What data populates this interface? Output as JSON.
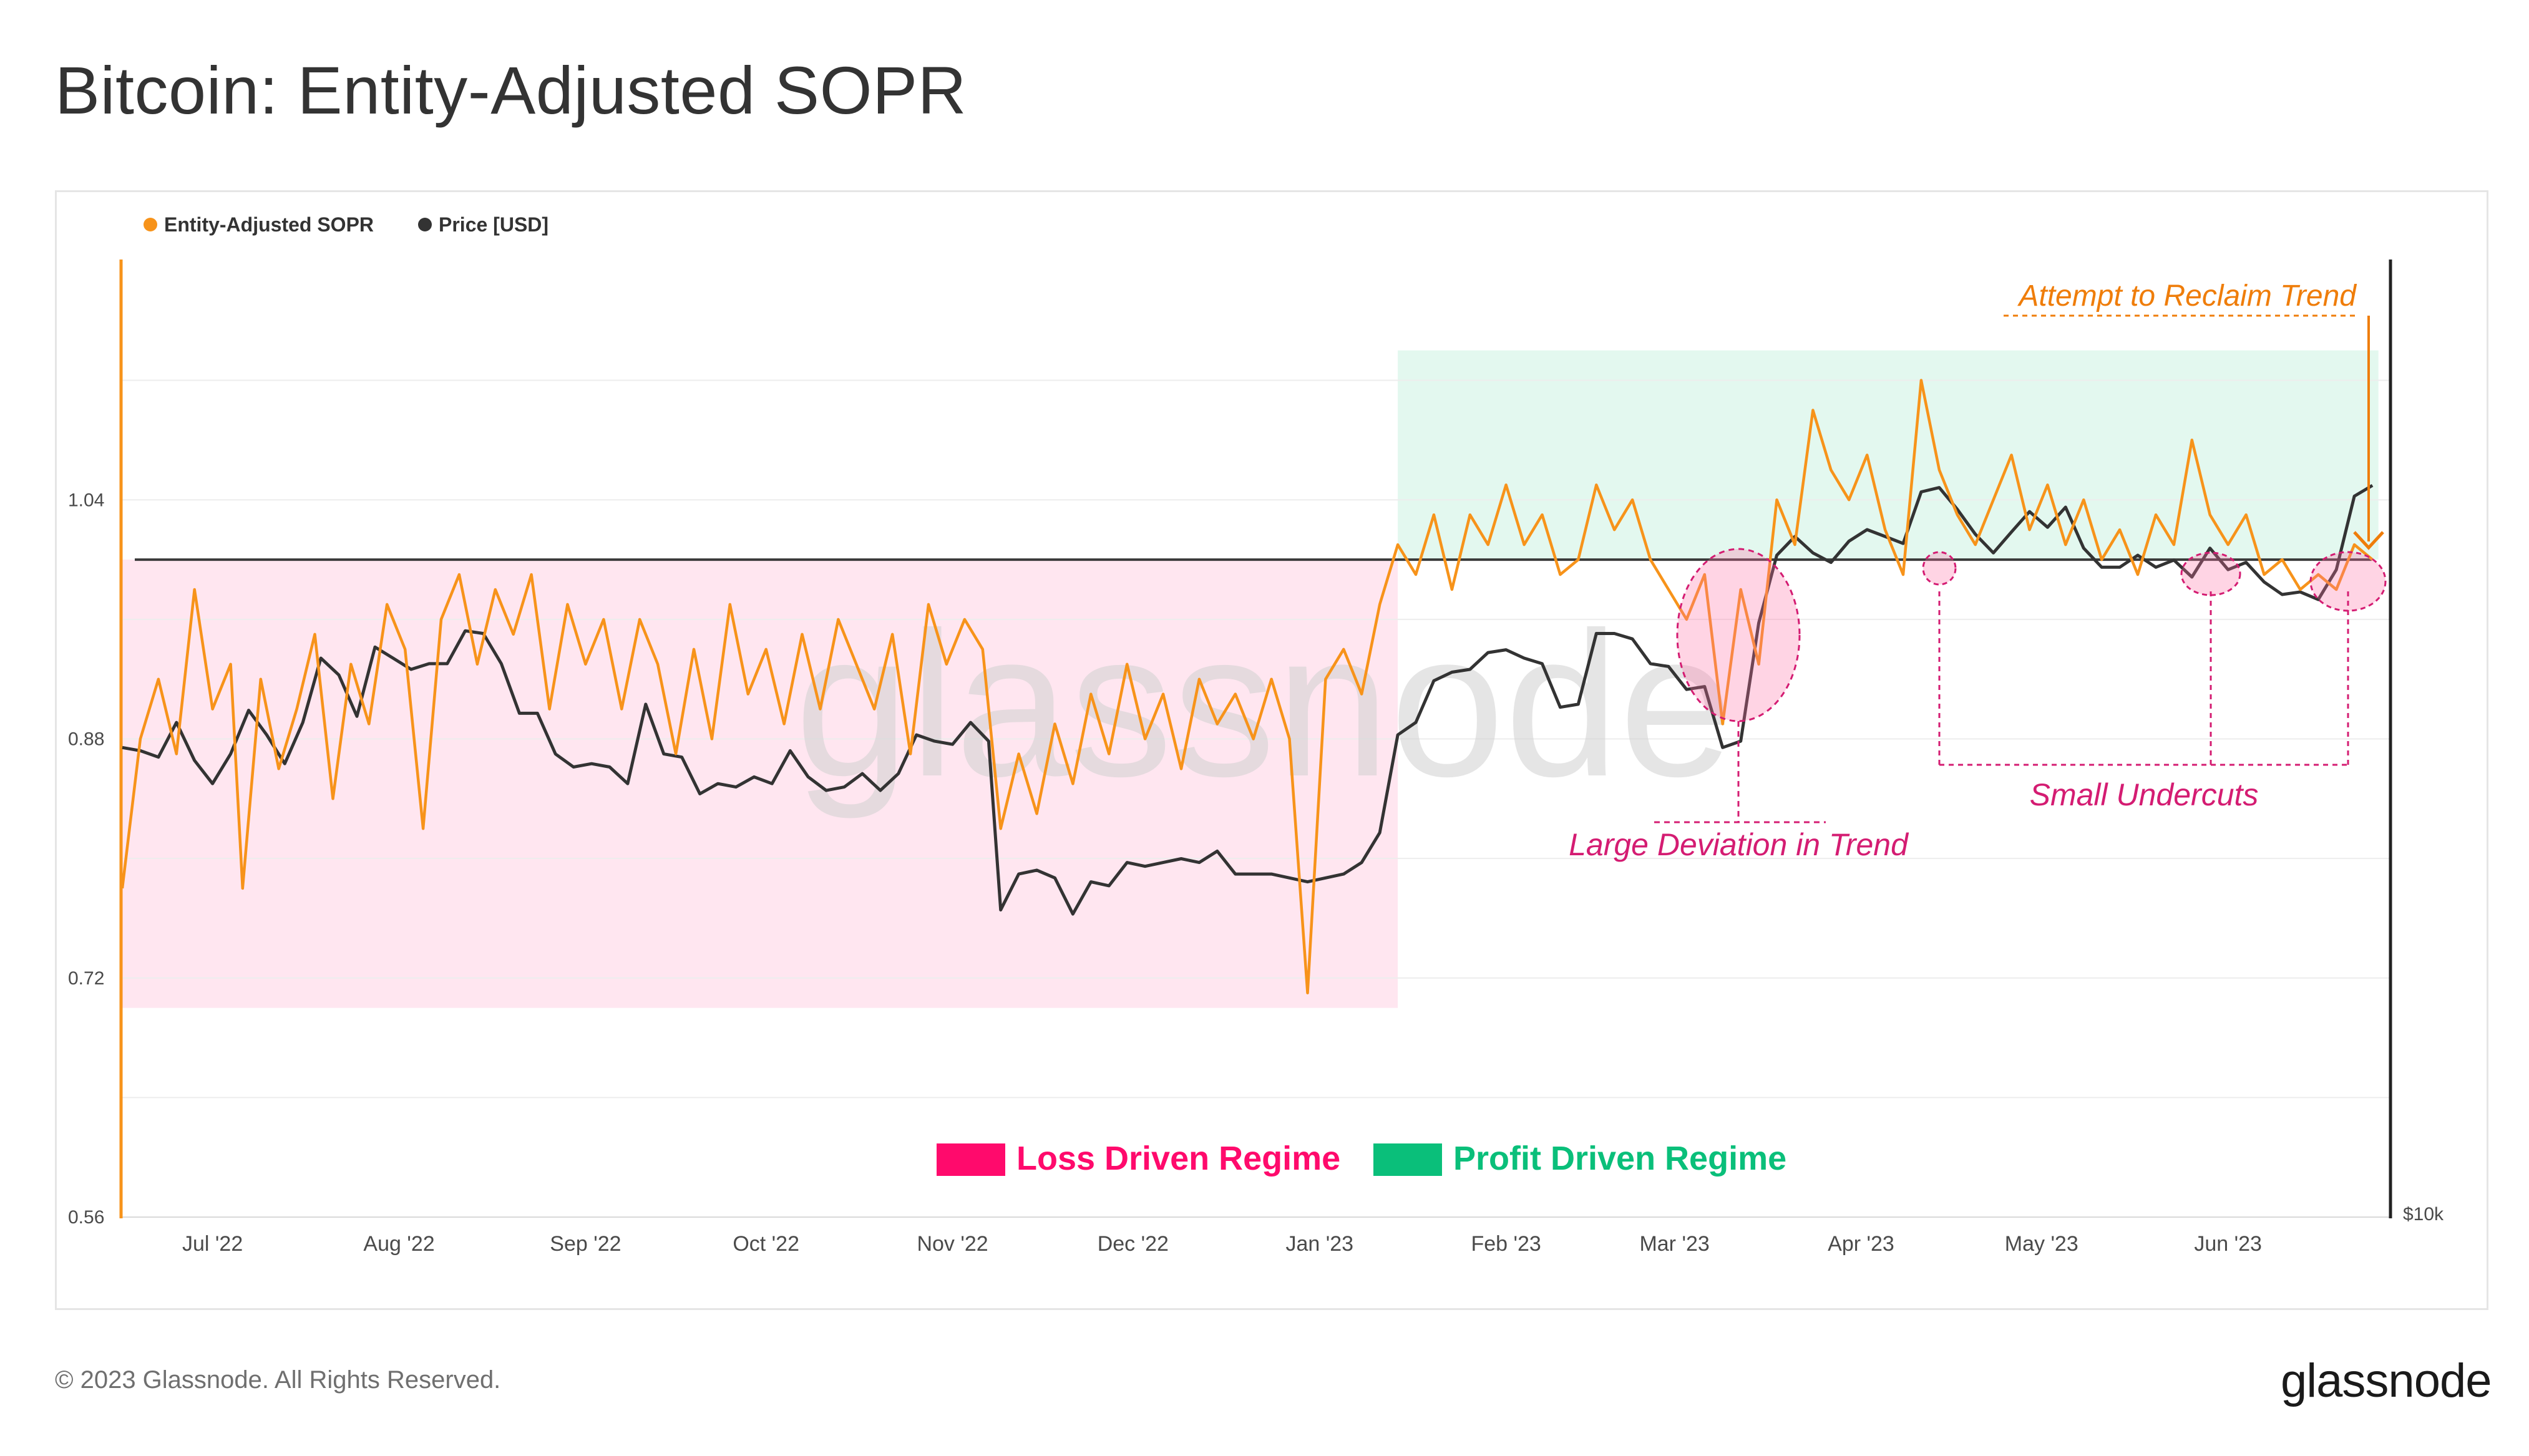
{
  "page": {
    "title": "Bitcoin: Entity-Adjusted SOPR",
    "footer": "© 2023 Glassnode. All Rights Reserved.",
    "brand": "glassnode",
    "watermark": "glassnode"
  },
  "chart_data": {
    "type": "line",
    "title": "Bitcoin: Entity-Adjusted SOPR",
    "legend": [
      {
        "name": "Entity-Adjusted SOPR",
        "color": "#f7931a"
      },
      {
        "name": "Price [USD]",
        "color": "#333333"
      }
    ],
    "legend_placement": "top-left",
    "grid": true,
    "x_ticks": [
      "Jul '22",
      "Aug '22",
      "Sep '22",
      "Oct '22",
      "Nov '22",
      "Dec '22",
      "Jan '23",
      "Feb '23",
      "Mar '23",
      "Apr '23",
      "May '23",
      "Jun '23"
    ],
    "x_range": [
      "2022-06-16",
      "2023-06-28"
    ],
    "y_left": {
      "ticks": [
        "0.56",
        "0.72",
        "0.88",
        "1.04"
      ],
      "range": [
        0.56,
        1.2
      ]
    },
    "y_right": {
      "ticks": [
        "$10k"
      ],
      "scale": "log"
    },
    "reference_line": 1.0,
    "series": [
      {
        "name": "Entity-Adjusted SOPR",
        "axis": "left",
        "color": "#f7931a",
        "points": [
          [
            "2022-06-16",
            0.78
          ],
          [
            "2022-06-19",
            0.88
          ],
          [
            "2022-06-22",
            0.92
          ],
          [
            "2022-06-25",
            0.87
          ],
          [
            "2022-06-28",
            0.98
          ],
          [
            "2022-07-01",
            0.9
          ],
          [
            "2022-07-04",
            0.93
          ],
          [
            "2022-07-06",
            0.78
          ],
          [
            "2022-07-09",
            0.92
          ],
          [
            "2022-07-12",
            0.86
          ],
          [
            "2022-07-15",
            0.9
          ],
          [
            "2022-07-18",
            0.95
          ],
          [
            "2022-07-21",
            0.84
          ],
          [
            "2022-07-24",
            0.93
          ],
          [
            "2022-07-27",
            0.89
          ],
          [
            "2022-07-30",
            0.97
          ],
          [
            "2022-08-02",
            0.94
          ],
          [
            "2022-08-05",
            0.82
          ],
          [
            "2022-08-08",
            0.96
          ],
          [
            "2022-08-11",
            0.99
          ],
          [
            "2022-08-14",
            0.93
          ],
          [
            "2022-08-17",
            0.98
          ],
          [
            "2022-08-20",
            0.95
          ],
          [
            "2022-08-23",
            0.99
          ],
          [
            "2022-08-26",
            0.9
          ],
          [
            "2022-08-29",
            0.97
          ],
          [
            "2022-09-01",
            0.93
          ],
          [
            "2022-09-04",
            0.96
          ],
          [
            "2022-09-07",
            0.9
          ],
          [
            "2022-09-10",
            0.96
          ],
          [
            "2022-09-13",
            0.93
          ],
          [
            "2022-09-16",
            0.87
          ],
          [
            "2022-09-19",
            0.94
          ],
          [
            "2022-09-22",
            0.88
          ],
          [
            "2022-09-25",
            0.97
          ],
          [
            "2022-09-28",
            0.91
          ],
          [
            "2022-10-01",
            0.94
          ],
          [
            "2022-10-04",
            0.89
          ],
          [
            "2022-10-07",
            0.95
          ],
          [
            "2022-10-10",
            0.9
          ],
          [
            "2022-10-13",
            0.96
          ],
          [
            "2022-10-16",
            0.93
          ],
          [
            "2022-10-19",
            0.9
          ],
          [
            "2022-10-22",
            0.95
          ],
          [
            "2022-10-25",
            0.87
          ],
          [
            "2022-10-28",
            0.97
          ],
          [
            "2022-10-31",
            0.93
          ],
          [
            "2022-11-03",
            0.96
          ],
          [
            "2022-11-06",
            0.94
          ],
          [
            "2022-11-09",
            0.82
          ],
          [
            "2022-11-12",
            0.87
          ],
          [
            "2022-11-15",
            0.83
          ],
          [
            "2022-11-18",
            0.89
          ],
          [
            "2022-11-21",
            0.85
          ],
          [
            "2022-11-24",
            0.91
          ],
          [
            "2022-11-27",
            0.87
          ],
          [
            "2022-11-30",
            0.93
          ],
          [
            "2022-12-03",
            0.88
          ],
          [
            "2022-12-06",
            0.91
          ],
          [
            "2022-12-09",
            0.86
          ],
          [
            "2022-12-12",
            0.92
          ],
          [
            "2022-12-15",
            0.89
          ],
          [
            "2022-12-18",
            0.91
          ],
          [
            "2022-12-21",
            0.88
          ],
          [
            "2022-12-24",
            0.92
          ],
          [
            "2022-12-27",
            0.88
          ],
          [
            "2022-12-30",
            0.71
          ],
          [
            "2023-01-02",
            0.92
          ],
          [
            "2023-01-05",
            0.94
          ],
          [
            "2023-01-08",
            0.91
          ],
          [
            "2023-01-11",
            0.97
          ],
          [
            "2023-01-14",
            1.01
          ],
          [
            "2023-01-17",
            0.99
          ],
          [
            "2023-01-20",
            1.03
          ],
          [
            "2023-01-23",
            0.98
          ],
          [
            "2023-01-26",
            1.03
          ],
          [
            "2023-01-29",
            1.01
          ],
          [
            "2023-02-01",
            1.05
          ],
          [
            "2023-02-04",
            1.01
          ],
          [
            "2023-02-07",
            1.03
          ],
          [
            "2023-02-10",
            0.99
          ],
          [
            "2023-02-13",
            1.0
          ],
          [
            "2023-02-16",
            1.05
          ],
          [
            "2023-02-19",
            1.02
          ],
          [
            "2023-02-22",
            1.04
          ],
          [
            "2023-02-25",
            1.0
          ],
          [
            "2023-02-28",
            0.98
          ],
          [
            "2023-03-03",
            0.96
          ],
          [
            "2023-03-06",
            0.99
          ],
          [
            "2023-03-09",
            0.89
          ],
          [
            "2023-03-12",
            0.98
          ],
          [
            "2023-03-15",
            0.93
          ],
          [
            "2023-03-18",
            1.04
          ],
          [
            "2023-03-21",
            1.01
          ],
          [
            "2023-03-24",
            1.1
          ],
          [
            "2023-03-27",
            1.06
          ],
          [
            "2023-03-30",
            1.04
          ],
          [
            "2023-04-02",
            1.07
          ],
          [
            "2023-04-05",
            1.02
          ],
          [
            "2023-04-08",
            0.99
          ],
          [
            "2023-04-11",
            1.12
          ],
          [
            "2023-04-14",
            1.06
          ],
          [
            "2023-04-17",
            1.03
          ],
          [
            "2023-04-20",
            1.01
          ],
          [
            "2023-04-23",
            1.04
          ],
          [
            "2023-04-26",
            1.07
          ],
          [
            "2023-04-29",
            1.02
          ],
          [
            "2023-05-02",
            1.05
          ],
          [
            "2023-05-05",
            1.01
          ],
          [
            "2023-05-08",
            1.04
          ],
          [
            "2023-05-11",
            1.0
          ],
          [
            "2023-05-14",
            1.02
          ],
          [
            "2023-05-17",
            0.99
          ],
          [
            "2023-05-20",
            1.03
          ],
          [
            "2023-05-23",
            1.01
          ],
          [
            "2023-05-26",
            1.08
          ],
          [
            "2023-05-29",
            1.03
          ],
          [
            "2023-06-01",
            1.01
          ],
          [
            "2023-06-04",
            1.03
          ],
          [
            "2023-06-07",
            0.99
          ],
          [
            "2023-06-10",
            1.0
          ],
          [
            "2023-06-13",
            0.98
          ],
          [
            "2023-06-16",
            0.99
          ],
          [
            "2023-06-19",
            0.98
          ],
          [
            "2023-06-22",
            1.01
          ],
          [
            "2023-06-25",
            1.0
          ]
        ]
      },
      {
        "name": "Price [USD]",
        "axis": "right",
        "color": "#333333",
        "points": [
          [
            "2022-06-16",
            20400
          ],
          [
            "2022-06-19",
            20300
          ],
          [
            "2022-06-22",
            20100
          ],
          [
            "2022-06-25",
            21200
          ],
          [
            "2022-06-28",
            20000
          ],
          [
            "2022-07-01",
            19300
          ],
          [
            "2022-07-04",
            20200
          ],
          [
            "2022-07-07",
            21600
          ],
          [
            "2022-07-10",
            20800
          ],
          [
            "2022-07-13",
            19900
          ],
          [
            "2022-07-16",
            21200
          ],
          [
            "2022-07-19",
            23400
          ],
          [
            "2022-07-22",
            22800
          ],
          [
            "2022-07-25",
            21400
          ],
          [
            "2022-07-28",
            23800
          ],
          [
            "2022-07-31",
            23400
          ],
          [
            "2022-08-03",
            23000
          ],
          [
            "2022-08-06",
            23200
          ],
          [
            "2022-08-09",
            23200
          ],
          [
            "2022-08-12",
            24400
          ],
          [
            "2022-08-15",
            24300
          ],
          [
            "2022-08-18",
            23200
          ],
          [
            "2022-08-21",
            21500
          ],
          [
            "2022-08-24",
            21500
          ],
          [
            "2022-08-27",
            20200
          ],
          [
            "2022-08-30",
            19800
          ],
          [
            "2022-09-02",
            19900
          ],
          [
            "2022-09-05",
            19800
          ],
          [
            "2022-09-08",
            19300
          ],
          [
            "2022-09-11",
            21800
          ],
          [
            "2022-09-14",
            20200
          ],
          [
            "2022-09-17",
            20100
          ],
          [
            "2022-09-20",
            19000
          ],
          [
            "2022-09-23",
            19300
          ],
          [
            "2022-09-26",
            19200
          ],
          [
            "2022-09-29",
            19500
          ],
          [
            "2022-10-02",
            19300
          ],
          [
            "2022-10-05",
            20300
          ],
          [
            "2022-10-08",
            19500
          ],
          [
            "2022-10-11",
            19100
          ],
          [
            "2022-10-14",
            19200
          ],
          [
            "2022-10-17",
            19600
          ],
          [
            "2022-10-20",
            19100
          ],
          [
            "2022-10-23",
            19600
          ],
          [
            "2022-10-26",
            20800
          ],
          [
            "2022-10-29",
            20600
          ],
          [
            "2022-11-01",
            20500
          ],
          [
            "2022-11-04",
            21200
          ],
          [
            "2022-11-07",
            20600
          ],
          [
            "2022-11-09",
            15900
          ],
          [
            "2022-11-12",
            16800
          ],
          [
            "2022-11-15",
            16900
          ],
          [
            "2022-11-18",
            16700
          ],
          [
            "2022-11-21",
            15800
          ],
          [
            "2022-11-24",
            16600
          ],
          [
            "2022-11-27",
            16500
          ],
          [
            "2022-11-30",
            17100
          ],
          [
            "2022-12-03",
            17000
          ],
          [
            "2022-12-06",
            17100
          ],
          [
            "2022-12-09",
            17200
          ],
          [
            "2022-12-12",
            17100
          ],
          [
            "2022-12-15",
            17400
          ],
          [
            "2022-12-18",
            16800
          ],
          [
            "2022-12-21",
            16800
          ],
          [
            "2022-12-24",
            16800
          ],
          [
            "2022-12-27",
            16700
          ],
          [
            "2022-12-30",
            16600
          ],
          [
            "2023-01-02",
            16700
          ],
          [
            "2023-01-05",
            16800
          ],
          [
            "2023-01-08",
            17100
          ],
          [
            "2023-01-11",
            17900
          ],
          [
            "2023-01-14",
            20800
          ],
          [
            "2023-01-17",
            21200
          ],
          [
            "2023-01-20",
            22600
          ],
          [
            "2023-01-23",
            22900
          ],
          [
            "2023-01-26",
            23000
          ],
          [
            "2023-01-29",
            23600
          ],
          [
            "2023-02-01",
            23700
          ],
          [
            "2023-02-04",
            23400
          ],
          [
            "2023-02-07",
            23200
          ],
          [
            "2023-02-10",
            21700
          ],
          [
            "2023-02-13",
            21800
          ],
          [
            "2023-02-16",
            24300
          ],
          [
            "2023-02-19",
            24300
          ],
          [
            "2023-02-22",
            24100
          ],
          [
            "2023-02-25",
            23200
          ],
          [
            "2023-02-28",
            23100
          ],
          [
            "2023-03-03",
            22300
          ],
          [
            "2023-03-06",
            22400
          ],
          [
            "2023-03-09",
            20400
          ],
          [
            "2023-03-12",
            20600
          ],
          [
            "2023-03-15",
            24700
          ],
          [
            "2023-03-18",
            27400
          ],
          [
            "2023-03-21",
            28200
          ],
          [
            "2023-03-24",
            27500
          ],
          [
            "2023-03-27",
            27100
          ],
          [
            "2023-03-30",
            28000
          ],
          [
            "2023-04-02",
            28500
          ],
          [
            "2023-04-05",
            28200
          ],
          [
            "2023-04-08",
            27900
          ],
          [
            "2023-04-11",
            30200
          ],
          [
            "2023-04-14",
            30400
          ],
          [
            "2023-04-17",
            29400
          ],
          [
            "2023-04-20",
            28300
          ],
          [
            "2023-04-23",
            27500
          ],
          [
            "2023-04-26",
            28400
          ],
          [
            "2023-04-29",
            29300
          ],
          [
            "2023-05-02",
            28600
          ],
          [
            "2023-05-05",
            29500
          ],
          [
            "2023-05-08",
            27700
          ],
          [
            "2023-05-11",
            26900
          ],
          [
            "2023-05-14",
            26900
          ],
          [
            "2023-05-17",
            27400
          ],
          [
            "2023-05-20",
            26900
          ],
          [
            "2023-05-23",
            27200
          ],
          [
            "2023-05-26",
            26500
          ],
          [
            "2023-05-29",
            27700
          ],
          [
            "2023-06-01",
            26800
          ],
          [
            "2023-06-04",
            27100
          ],
          [
            "2023-06-07",
            26300
          ],
          [
            "2023-06-10",
            25800
          ],
          [
            "2023-06-13",
            25900
          ],
          [
            "2023-06-16",
            25600
          ],
          [
            "2023-06-19",
            26800
          ],
          [
            "2023-06-22",
            30000
          ],
          [
            "2023-06-25",
            30500
          ]
        ]
      }
    ],
    "regimes": [
      {
        "label": "Loss Driven Regime",
        "color": "#ff0a6c",
        "start": "2022-06-16",
        "end": "2023-01-14",
        "y": [
          0.7,
          1.0
        ]
      },
      {
        "label": "Profit Driven Regime",
        "color": "#0abf7a",
        "start": "2023-01-14",
        "end": "2023-06-26",
        "y": [
          1.0,
          1.14
        ]
      }
    ],
    "annotations": [
      {
        "text": "Attempt to Reclaim Trend",
        "color": "#ef7d0a"
      },
      {
        "text": "Large Deviation in Trend",
        "color": "#d41c72"
      },
      {
        "text": "Small Undercuts",
        "color": "#d41c72"
      }
    ]
  }
}
